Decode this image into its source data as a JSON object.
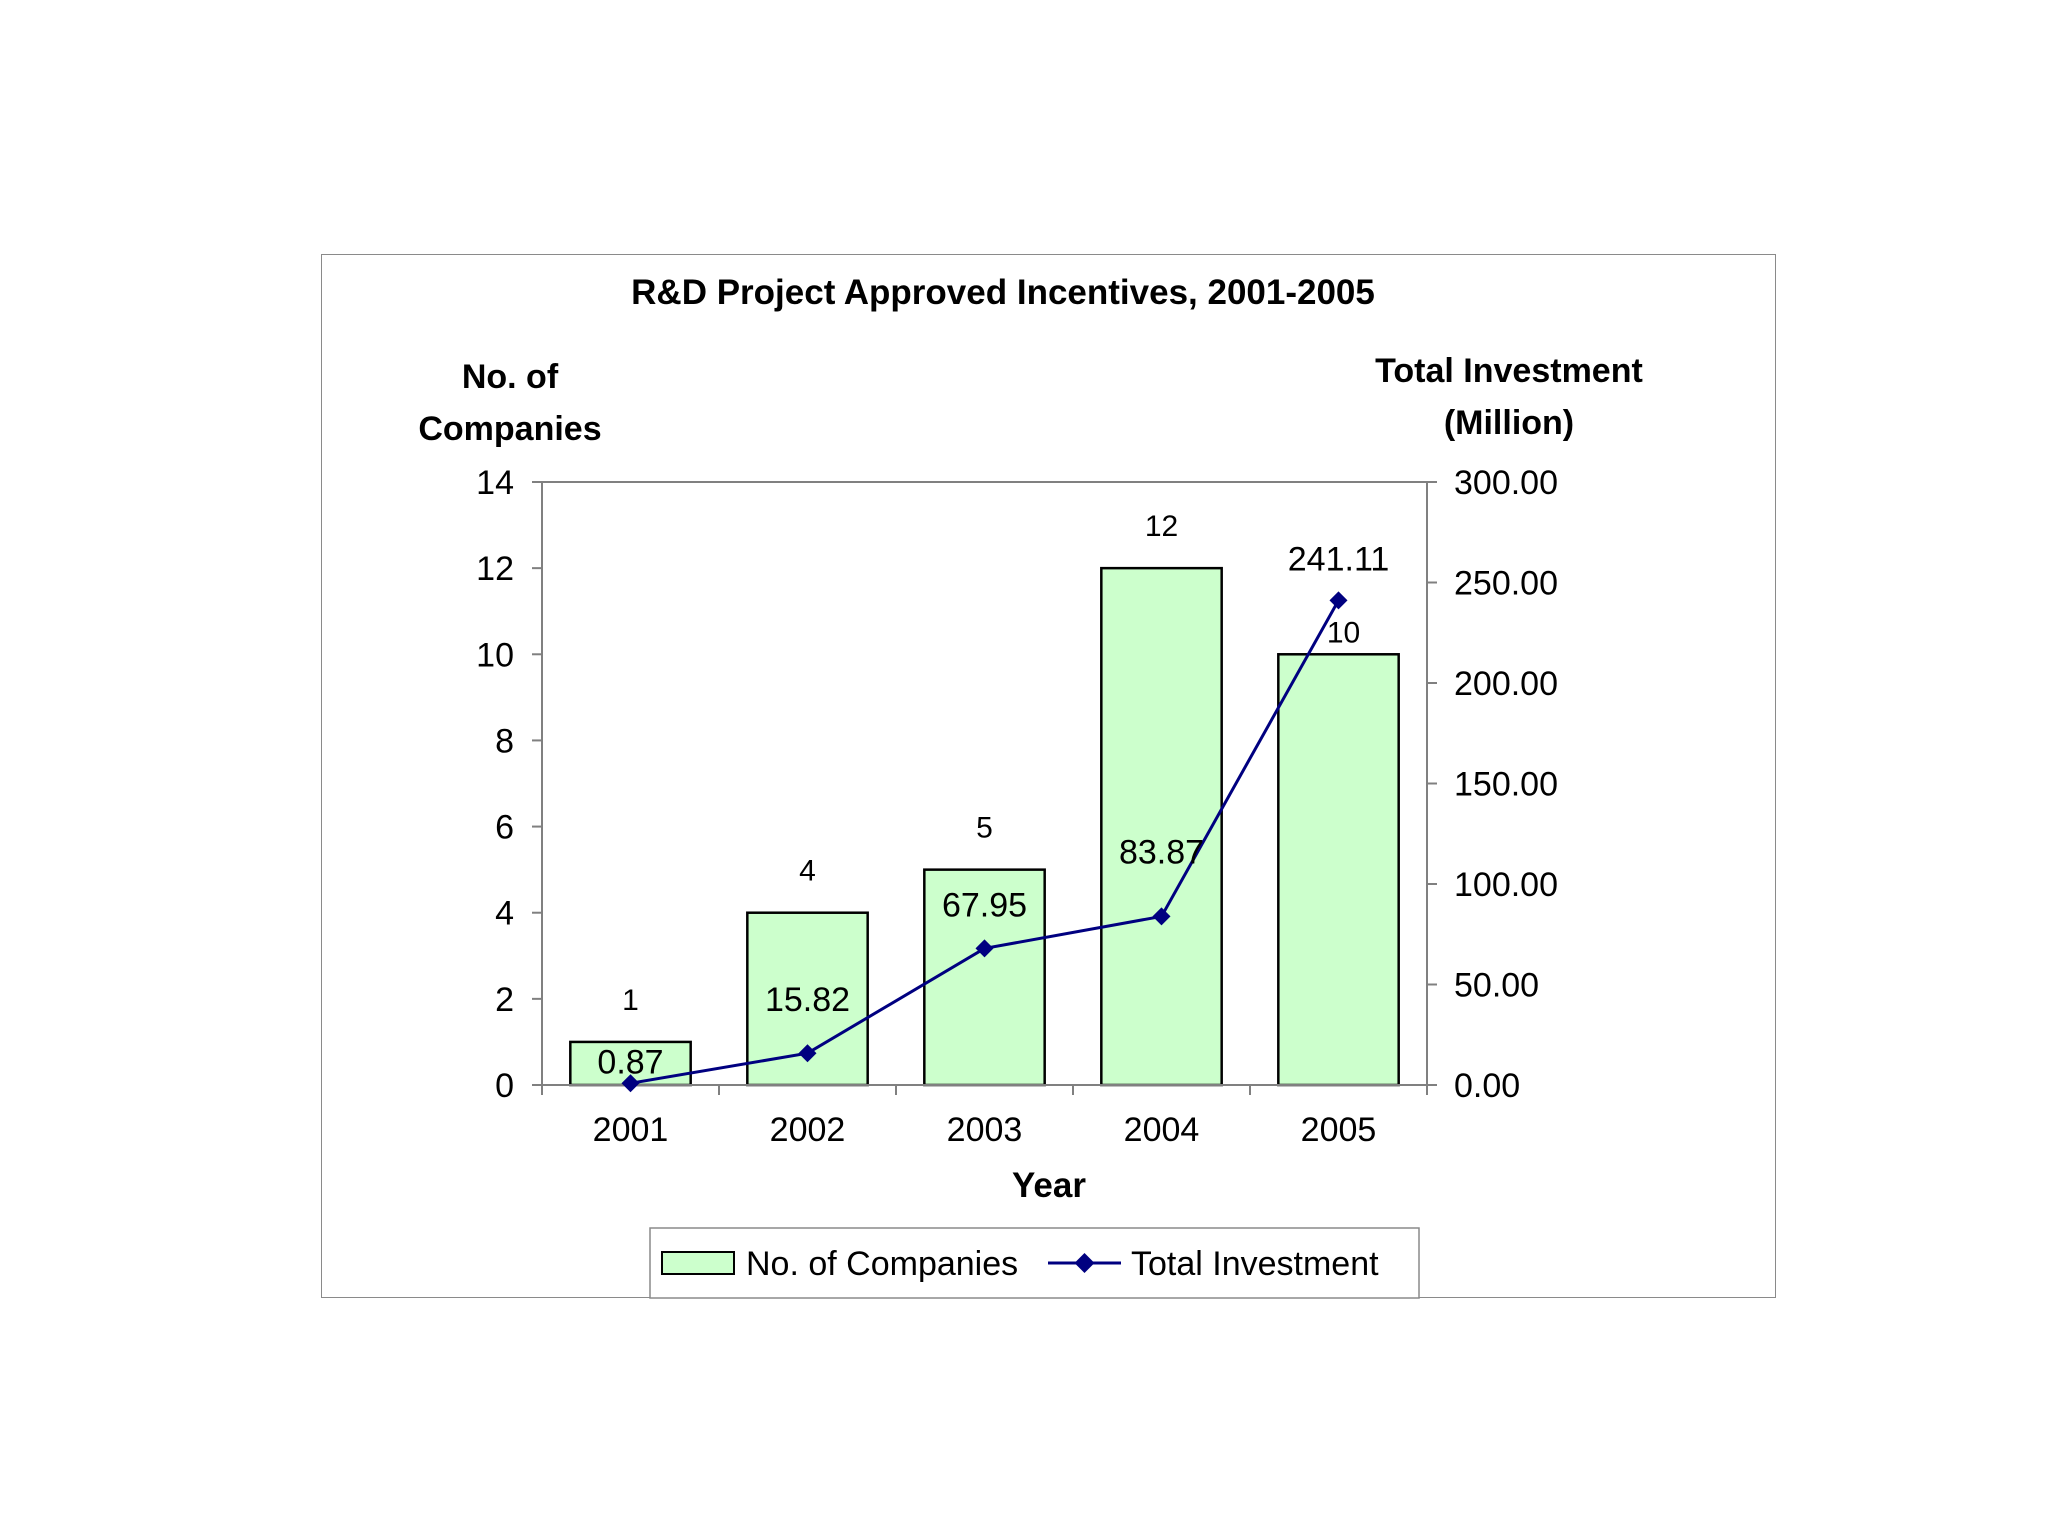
{
  "chart_data": {
    "type": "bar",
    "title": "R&D Project Approved Incentives, 2001-2005",
    "xlabel": "Year",
    "ylabel_left_line1": "No. of",
    "ylabel_left_line2": "Companies",
    "ylabel_right_line1": "Total Investment",
    "ylabel_right_line2": "(Million)",
    "categories": [
      "2001",
      "2002",
      "2003",
      "2004",
      "2005"
    ],
    "left_axis": {
      "ylim": [
        0,
        14
      ],
      "ticks": [
        "0",
        "2",
        "4",
        "6",
        "8",
        "10",
        "12",
        "14"
      ]
    },
    "right_axis": {
      "ylim": [
        0,
        300
      ],
      "ticks": [
        "0.00",
        "50.00",
        "100.00",
        "150.00",
        "200.00",
        "250.00",
        "300.00"
      ]
    },
    "series": [
      {
        "name": "No. of Companies",
        "kind": "bar",
        "axis": "left",
        "values": [
          1,
          4,
          5,
          12,
          10
        ],
        "labels": [
          "1",
          "4",
          "5",
          "12",
          "10"
        ],
        "color": "#ccffcc"
      },
      {
        "name": "Total Investment",
        "kind": "line",
        "axis": "right",
        "values": [
          0.87,
          15.82,
          67.95,
          83.87,
          241.11
        ],
        "labels": [
          "0.87",
          "15.82",
          "67.95",
          "83.87",
          "241.11"
        ],
        "color": "#000080"
      }
    ],
    "grid": false,
    "legend": "bottom"
  }
}
